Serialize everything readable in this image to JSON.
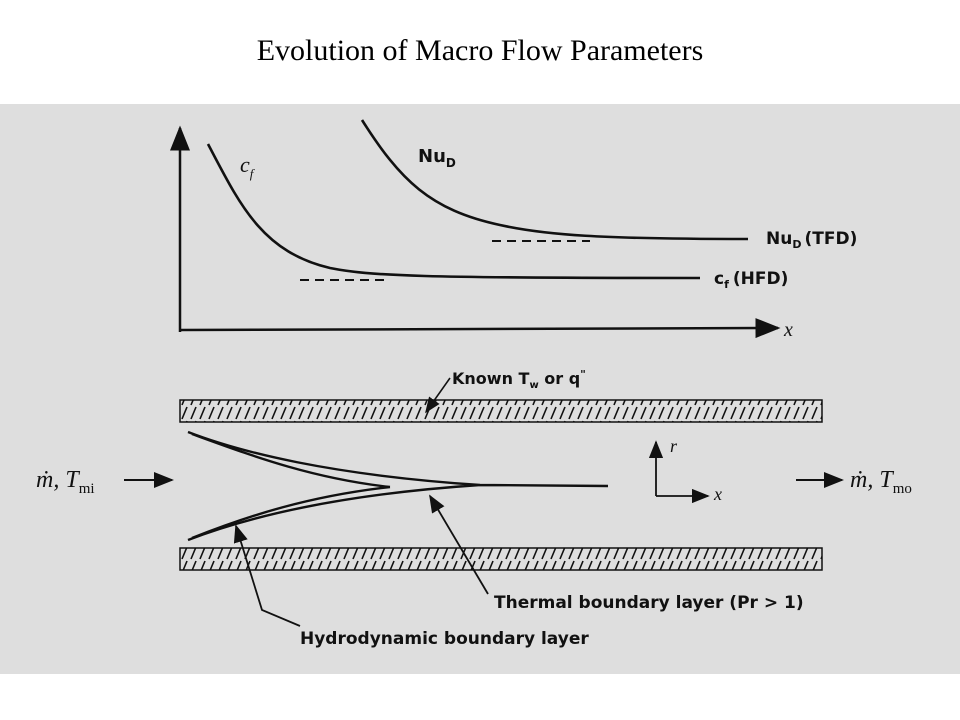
{
  "title": "Evolution of Macro Flow Parameters",
  "plot": {
    "axis_x": "x",
    "curve_cf": "c",
    "curve_cf_sub": "f",
    "curve_nu": "Nu",
    "curve_nu_sub": "D",
    "asym_nu_main": "Nu",
    "asym_nu_sub": "D",
    "asym_nu_tag": "(TFD)",
    "asym_cf_main": "c",
    "asym_cf_sub": "f",
    "asym_cf_tag": "(HFD)"
  },
  "channel": {
    "wall_label_a": "Known T",
    "wall_label_sub": "w",
    "wall_label_mid": " or q",
    "wall_label_sup": "\"",
    "inlet_label": "ṁ, T",
    "inlet_sub": "mi",
    "outlet_label": "ṁ, T",
    "outlet_sub": "mo",
    "coord_r": "r",
    "coord_x": "x",
    "thermal_label": "Thermal boundary layer (Pr > 1)",
    "hydro_label": "Hydrodynamic boundary layer"
  },
  "colors": {
    "background": "#ffffff",
    "scan": "#dedede",
    "ink": "#111111"
  }
}
